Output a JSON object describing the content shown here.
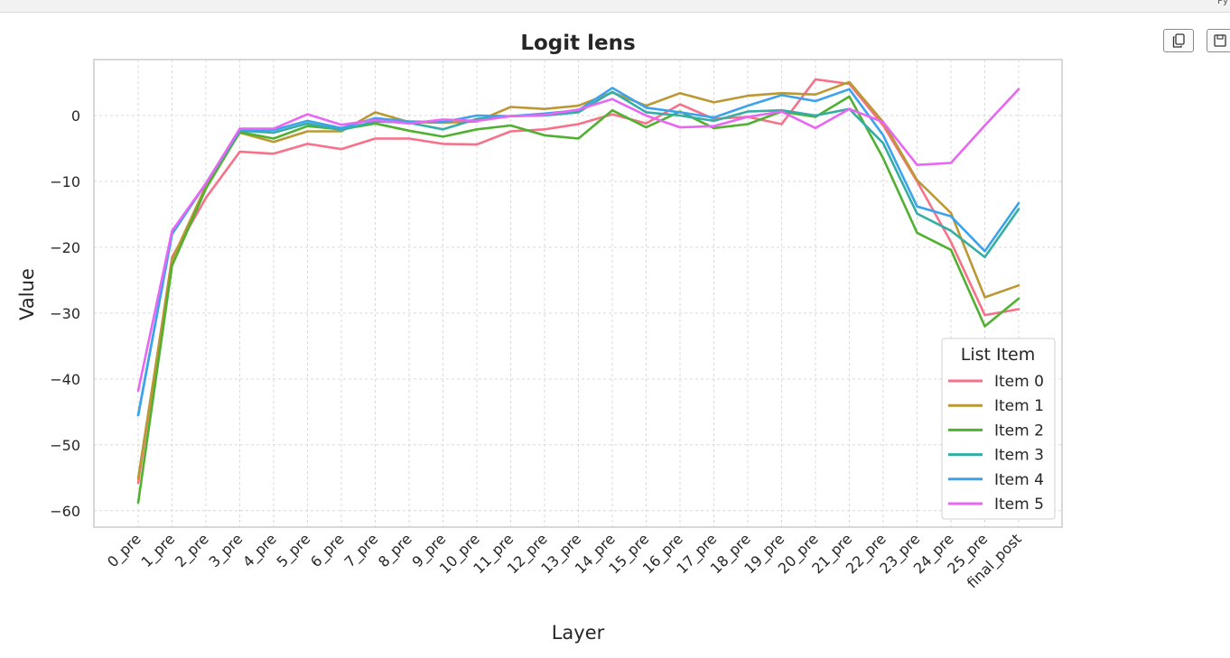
{
  "topbar": {
    "text": "Py"
  },
  "toolbar": {
    "copy_icon": "copy-icon",
    "save_icon": "save-icon"
  },
  "chart_data": {
    "type": "line",
    "title": "Logit lens",
    "xlabel": "Layer",
    "ylabel": "Value",
    "ylim": [
      -62.5,
      8.5
    ],
    "yticks": [
      0,
      -10,
      -20,
      -30,
      -40,
      -50,
      -60
    ],
    "grid": true,
    "legend": {
      "title": "List Item",
      "placement": "lower-right"
    },
    "categories": [
      "0_pre",
      "1_pre",
      "2_pre",
      "3_pre",
      "4_pre",
      "5_pre",
      "6_pre",
      "7_pre",
      "8_pre",
      "9_pre",
      "10_pre",
      "11_pre",
      "12_pre",
      "13_pre",
      "14_pre",
      "15_pre",
      "16_pre",
      "17_pre",
      "18_pre",
      "19_pre",
      "20_pre",
      "21_pre",
      "22_pre",
      "23_pre",
      "24_pre",
      "25_pre",
      "final_post"
    ],
    "series": [
      {
        "name": "Item 0",
        "color": "#f77189",
        "values": [
          -55.8,
          -21.5,
          -12.5,
          -5.5,
          -5.8,
          -4.3,
          -5.1,
          -3.5,
          -3.5,
          -4.3,
          -4.4,
          -2.4,
          -2.1,
          -1.3,
          0.2,
          -1.2,
          1.7,
          -0.5,
          -0.2,
          -1.3,
          5.5,
          4.8,
          -1.5,
          -10.0,
          -19.2,
          -30.3,
          -29.4
        ]
      },
      {
        "name": "Item 1",
        "color": "#bb9832",
        "values": [
          -55.1,
          -21.9,
          -10.7,
          -2.6,
          -4.0,
          -2.4,
          -2.4,
          0.5,
          -1.0,
          -1.1,
          -0.9,
          1.3,
          1.0,
          1.5,
          3.5,
          1.5,
          3.4,
          2.0,
          3.0,
          3.4,
          3.2,
          5.1,
          -1.0,
          -9.8,
          -14.8,
          -27.6,
          -25.8
        ]
      },
      {
        "name": "Item 2",
        "color": "#50b131",
        "values": [
          -58.8,
          -22.8,
          -11.1,
          -2.5,
          -3.5,
          -1.6,
          -2.1,
          -1.2,
          -2.3,
          -3.2,
          -2.1,
          -1.5,
          -3.0,
          -3.5,
          0.8,
          -1.8,
          0.6,
          -1.9,
          -1.3,
          0.6,
          -0.2,
          2.9,
          -6.5,
          -17.8,
          -20.4,
          -32.0,
          -27.8
        ]
      },
      {
        "name": "Item 3",
        "color": "#36ada4",
        "values": [
          -45.5,
          -18.0,
          -10.3,
          -2.3,
          -2.6,
          -1.2,
          -2.2,
          -0.9,
          -1.1,
          -2.1,
          -0.5,
          -0.1,
          0.0,
          0.5,
          3.6,
          0.5,
          0.0,
          -0.8,
          0.6,
          0.8,
          0.0,
          1.0,
          -4.2,
          -14.9,
          -17.5,
          -21.5,
          -14.2
        ]
      },
      {
        "name": "Item 4",
        "color": "#3ba3ec",
        "values": [
          -45.5,
          -18.0,
          -10.3,
          -2.2,
          -2.2,
          -0.8,
          -1.9,
          -0.4,
          -0.9,
          -1.0,
          0.0,
          -0.1,
          0.3,
          0.8,
          4.2,
          1.2,
          0.5,
          -0.3,
          1.5,
          3.1,
          2.2,
          4.0,
          -3.0,
          -13.8,
          -15.3,
          -20.6,
          -13.3
        ]
      },
      {
        "name": "Item 5",
        "color": "#e866f4",
        "values": [
          -41.8,
          -17.5,
          -10.3,
          -2.0,
          -2.0,
          0.2,
          -1.4,
          -0.7,
          -1.2,
          -0.6,
          -0.8,
          -0.1,
          0.1,
          0.9,
          2.5,
          0.0,
          -1.8,
          -1.6,
          -0.2,
          0.6,
          -1.9,
          1.0,
          -1.0,
          -7.5,
          -7.2,
          -1.5,
          4.0
        ]
      }
    ]
  }
}
